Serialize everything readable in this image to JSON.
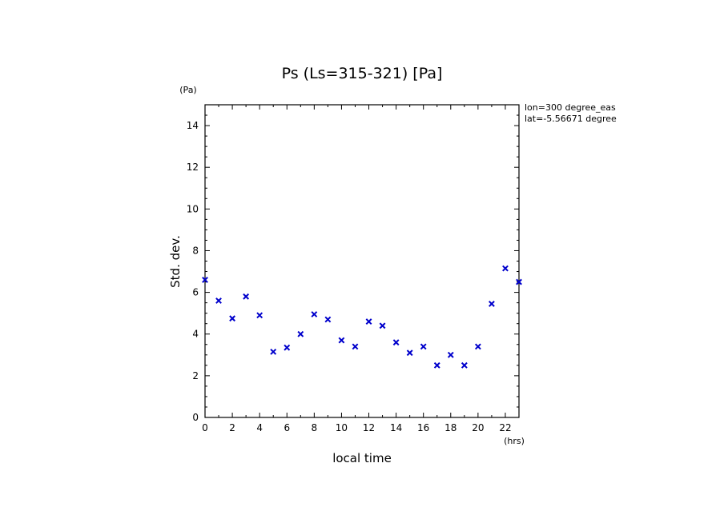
{
  "chart_data": {
    "type": "scatter",
    "title": "Ps (Ls=315-321) [Pa]",
    "xlabel": "local time",
    "ylabel": "Std. dev.",
    "x_unit": "(hrs)",
    "y_unit": "(Pa)",
    "xlim": [
      0,
      23
    ],
    "ylim": [
      0,
      15
    ],
    "x_ticks": [
      0,
      2,
      4,
      6,
      8,
      10,
      12,
      14,
      16,
      18,
      20,
      22
    ],
    "y_ticks": [
      0,
      2,
      4,
      6,
      8,
      10,
      12,
      14
    ],
    "annotations": [
      "lon=300 degree_eas",
      "lat=-5.56671 degree"
    ],
    "marker": "x",
    "marker_color": "#0000cc",
    "grid": false,
    "series": [
      {
        "x": [
          0,
          1,
          2,
          3,
          4,
          5,
          6,
          7,
          8,
          9,
          10,
          11,
          12,
          13,
          14,
          15,
          16,
          17,
          18,
          19,
          20,
          21,
          22,
          23
        ],
        "y": [
          6.6,
          5.6,
          4.75,
          5.8,
          4.9,
          3.15,
          3.35,
          4.0,
          4.95,
          4.7,
          3.7,
          3.4,
          4.6,
          4.4,
          3.6,
          3.1,
          3.4,
          2.5,
          3.0,
          2.5,
          3.4,
          5.45,
          7.15,
          6.5
        ]
      }
    ]
  }
}
